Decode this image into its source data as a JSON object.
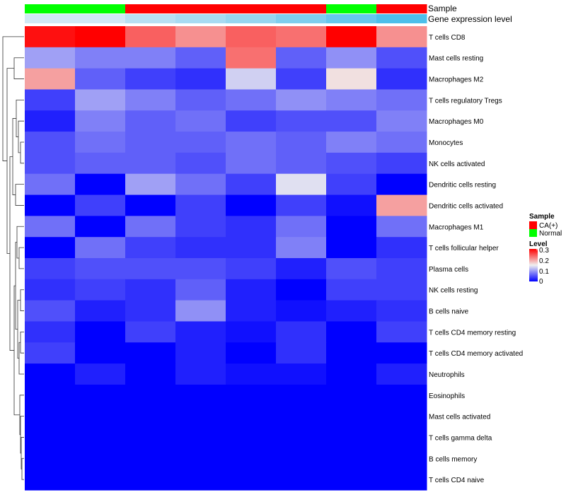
{
  "chart_data": {
    "type": "heatmap",
    "annotation_tracks": {
      "sample_label": "Sample",
      "expression_label": "Gene expression level",
      "sample": [
        "Normal",
        "Normal",
        "CA(+)",
        "CA(+)",
        "CA(+)",
        "CA(+)",
        "Normal",
        "CA(+)"
      ],
      "expression": [
        0.2,
        0.2,
        0.35,
        0.45,
        0.55,
        0.7,
        0.85,
        1.0
      ]
    },
    "rows": [
      "T cells CD8",
      "Mast cells resting",
      "Macrophages M2",
      "T cells regulatory  Tregs",
      "Macrophages M0",
      "Monocytes",
      "NK cells activated",
      "Dendritic cells resting",
      "Dendritic cells activated",
      "Macrophages M1",
      "T cells follicular helper",
      "Plasma cells",
      "NK cells resting",
      "B cells naive",
      "T cells CD4 memory resting",
      "T cells CD4 memory activated",
      "Neutrophils",
      "Eosinophils",
      "Mast cells activated",
      "T cells gamma delta",
      "B cells memory",
      "T cells CD4 naive"
    ],
    "values": [
      [
        0.29,
        0.3,
        0.24,
        0.21,
        0.24,
        0.23,
        0.3,
        0.21
      ],
      [
        0.1,
        0.08,
        0.08,
        0.06,
        0.23,
        0.06,
        0.09,
        0.05
      ],
      [
        0.2,
        0.06,
        0.04,
        0.03,
        0.13,
        0.04,
        0.16,
        0.03
      ],
      [
        0.04,
        0.1,
        0.08,
        0.06,
        0.07,
        0.09,
        0.08,
        0.07
      ],
      [
        0.02,
        0.08,
        0.06,
        0.07,
        0.04,
        0.05,
        0.05,
        0.08
      ],
      [
        0.05,
        0.07,
        0.06,
        0.06,
        0.07,
        0.06,
        0.08,
        0.07
      ],
      [
        0.05,
        0.06,
        0.06,
        0.05,
        0.07,
        0.06,
        0.05,
        0.04
      ],
      [
        0.07,
        0.0,
        0.1,
        0.07,
        0.04,
        0.14,
        0.04,
        0.0
      ],
      [
        0.0,
        0.04,
        0.0,
        0.04,
        0.0,
        0.04,
        0.01,
        0.2
      ],
      [
        0.07,
        0.0,
        0.07,
        0.04,
        0.03,
        0.07,
        0.0,
        0.07
      ],
      [
        0.0,
        0.07,
        0.04,
        0.03,
        0.03,
        0.08,
        0.0,
        0.03
      ],
      [
        0.04,
        0.05,
        0.05,
        0.05,
        0.04,
        0.02,
        0.05,
        0.04
      ],
      [
        0.03,
        0.04,
        0.03,
        0.06,
        0.02,
        0.0,
        0.04,
        0.04
      ],
      [
        0.05,
        0.02,
        0.03,
        0.09,
        0.02,
        0.01,
        0.02,
        0.03
      ],
      [
        0.03,
        0.0,
        0.04,
        0.02,
        0.01,
        0.03,
        0.0,
        0.04
      ],
      [
        0.04,
        0.0,
        0.0,
        0.02,
        0.0,
        0.03,
        0.0,
        0.0
      ],
      [
        0.0,
        0.02,
        0.0,
        0.02,
        0.01,
        0.01,
        0.0,
        0.02
      ],
      [
        0.0,
        0.0,
        0.0,
        0.0,
        0.0,
        0.0,
        0.0,
        0.0
      ],
      [
        0.0,
        0.0,
        0.0,
        0.0,
        0.0,
        0.0,
        0.0,
        0.0
      ],
      [
        0.0,
        0.0,
        0.0,
        0.0,
        0.0,
        0.0,
        0.0,
        0.0
      ],
      [
        0.0,
        0.0,
        0.0,
        0.0,
        0.0,
        0.0,
        0.0,
        0.0
      ],
      [
        0.0,
        0.0,
        0.0,
        0.0,
        0.0,
        0.0,
        0.0,
        0.0
      ]
    ],
    "color_scale": {
      "min": 0,
      "mid": 0.15,
      "max": 0.3,
      "low": "#0000FF",
      "midcolor": "#F0F0F0",
      "high": "#FF0000"
    },
    "legend": {
      "sample_title": "Sample",
      "sample_items": [
        {
          "label": "CA(+)",
          "color": "#FF0000"
        },
        {
          "label": "Normal",
          "color": "#00FF00"
        }
      ],
      "level_title": "Level",
      "level_ticks": [
        "0.3",
        "0.2",
        "0.1",
        "0"
      ]
    },
    "sample_colors": {
      "CA(+)": "#FF0000",
      "Normal": "#00FF00"
    },
    "expression_colors": {
      "low": "#F2F2F8",
      "high": "#4DBFEA"
    },
    "dendrogram": "row",
    "legend_position": "right"
  }
}
